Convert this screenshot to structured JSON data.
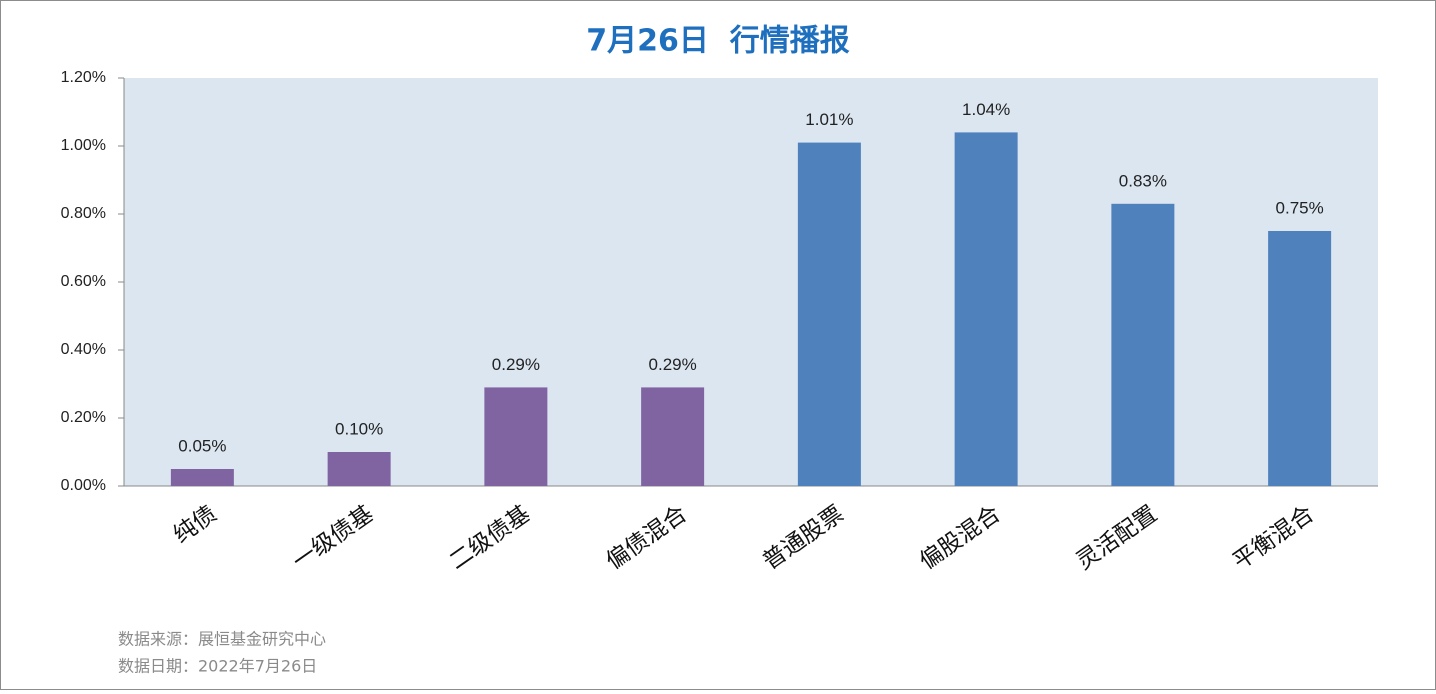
{
  "chart_data": {
    "type": "bar",
    "title": "7月26日  行情播报",
    "categories": [
      "纯债",
      "一级债基",
      "二级债基",
      "偏债混合",
      "普通股票",
      "偏股混合",
      "灵活配置",
      "平衡混合"
    ],
    "values": [
      0.05,
      0.1,
      0.29,
      0.29,
      1.01,
      1.04,
      0.83,
      0.75
    ],
    "value_labels": [
      "0.05%",
      "0.10%",
      "0.29%",
      "0.29%",
      "1.01%",
      "1.04%",
      "0.83%",
      "0.75%"
    ],
    "colors": [
      "#8064a2",
      "#8064a2",
      "#8064a2",
      "#8064a2",
      "#4f81bd",
      "#4f81bd",
      "#4f81bd",
      "#4f81bd"
    ],
    "ylim": [
      0,
      1.2
    ],
    "yticks": [
      {
        "value": 0,
        "label": "0.00%"
      },
      {
        "value": 0.2,
        "label": "0.20%"
      },
      {
        "value": 0.4,
        "label": "0.40%"
      },
      {
        "value": 0.6,
        "label": "0.60%"
      },
      {
        "value": 0.8,
        "label": "0.80%"
      },
      {
        "value": 1.0,
        "label": "1.00%"
      },
      {
        "value": 1.2,
        "label": "1.20%"
      }
    ],
    "grid": false,
    "notes": [
      "数据来源：展恒基金研究中心",
      "数据日期：2022年7月26日"
    ]
  }
}
